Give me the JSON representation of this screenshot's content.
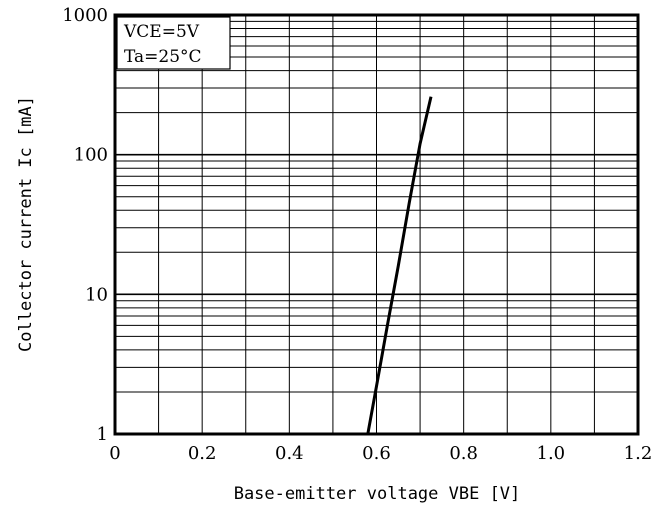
{
  "chart_data": {
    "type": "line",
    "title": "",
    "xlabel": "Base-emitter voltage VBE [V]",
    "ylabel": "Collector current Ic [mA]",
    "x_scale": "linear",
    "y_scale": "log",
    "xlim": [
      0,
      1.2
    ],
    "ylim": [
      1,
      1000
    ],
    "x_ticks": [
      "0",
      "0.2",
      "0.4",
      "0.6",
      "0.8",
      "1.0",
      "1.2"
    ],
    "y_ticks": [
      "1",
      "10",
      "100",
      "1000"
    ],
    "grid": true,
    "legend": {
      "position": "top-left",
      "lines": [
        "VCE=5V",
        "Ta=25°C"
      ]
    },
    "series": [
      {
        "x": [
          0.58,
          0.6,
          0.625,
          0.65,
          0.675,
          0.7,
          0.725
        ],
        "y": [
          1,
          2.2,
          6,
          16,
          45,
          120,
          260
        ]
      }
    ]
  }
}
